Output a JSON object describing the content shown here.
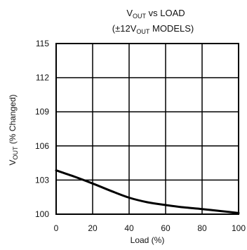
{
  "chart_data": {
    "type": "line",
    "title": {
      "line1": {
        "prefix": "V",
        "sub": "OUT",
        "suffix": " vs LOAD"
      },
      "line2": {
        "prefix": "(±12V",
        "sub": "OUT",
        "suffix": "  MODELS)"
      }
    },
    "xlabel": "Load (%)",
    "ylabel": {
      "prefix": "V",
      "sub": "OUT",
      "suffix": " (% Changed)"
    },
    "xlim": [
      0,
      100
    ],
    "ylim": [
      100,
      115
    ],
    "xticks": [
      0,
      20,
      40,
      60,
      80,
      100
    ],
    "yticks": [
      100,
      103,
      106,
      109,
      112,
      115
    ],
    "grid": true,
    "series": [
      {
        "x": [
          0,
          10,
          20,
          30,
          40,
          50,
          60,
          70,
          80,
          90,
          100
        ],
        "y": [
          103.85,
          103.3,
          102.7,
          102.05,
          101.45,
          101.05,
          100.8,
          100.6,
          100.45,
          100.28,
          100.1
        ]
      }
    ]
  }
}
